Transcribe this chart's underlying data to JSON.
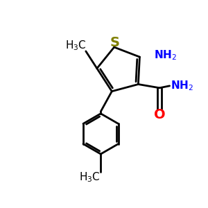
{
  "background_color": "#ffffff",
  "bond_color": "#000000",
  "sulfur_color": "#808000",
  "nitrogen_color": "#0000ff",
  "oxygen_color": "#ff0000",
  "line_width": 2.0,
  "figsize": [
    3.0,
    3.0
  ],
  "dpi": 100
}
